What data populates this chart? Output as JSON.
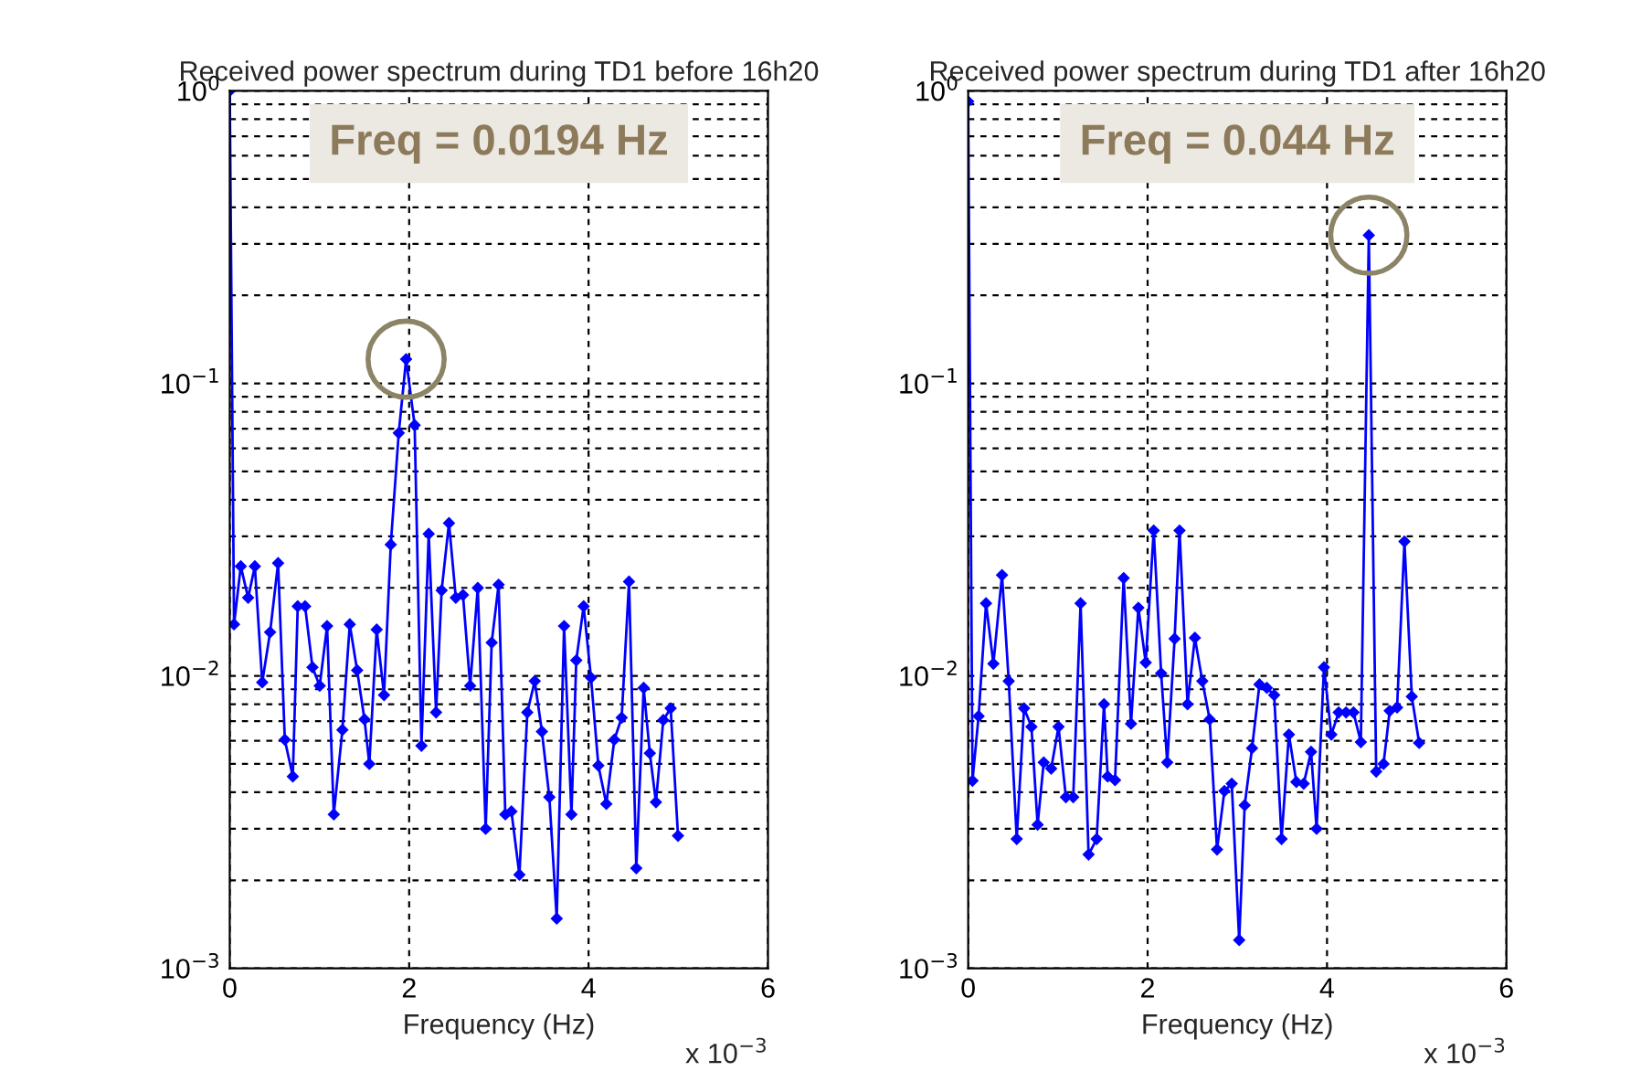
{
  "chart_data": [
    {
      "type": "line",
      "title": "Received power spectrum during TD1 before 16h20",
      "xlabel": "Frequency (Hz)",
      "marker": "diamond",
      "line_style": "solid",
      "grid": true,
      "log": "y",
      "xlim": [
        0,
        6
      ],
      "xticks": [
        0,
        2,
        4,
        6
      ],
      "ylim": [
        0.001,
        1
      ],
      "yticks": [
        {
          "value": 0.001,
          "label": "10$^{−3}$"
        },
        {
          "value": 0.002,
          "label": null
        },
        {
          "value": 0.003,
          "label": null
        },
        {
          "value": 0.004,
          "label": null
        },
        {
          "value": 0.005,
          "label": null
        },
        {
          "value": 0.006,
          "label": null
        },
        {
          "value": 0.007,
          "label": null
        },
        {
          "value": 0.008,
          "label": null
        },
        {
          "value": 0.009,
          "label": null
        },
        {
          "value": 0.01,
          "label": "10$^{−2}$"
        },
        {
          "value": 0.02,
          "label": null
        },
        {
          "value": 0.03,
          "label": null
        },
        {
          "value": 0.04,
          "label": null
        },
        {
          "value": 0.05,
          "label": null
        },
        {
          "value": 0.06,
          "label": null
        },
        {
          "value": 0.07,
          "label": null
        },
        {
          "value": 0.08,
          "label": null
        },
        {
          "value": 0.09,
          "label": null
        },
        {
          "value": 0.1,
          "label": "10$^{−1}$"
        },
        {
          "value": 0.2,
          "label": null
        },
        {
          "value": 0.3,
          "label": null
        },
        {
          "value": 0.4,
          "label": null
        },
        {
          "value": 0.5,
          "label": null
        },
        {
          "value": 0.6,
          "label": null
        },
        {
          "value": 0.7,
          "label": null
        },
        {
          "value": 0.8,
          "label": null
        },
        {
          "value": 0.9,
          "label": null
        },
        {
          "value": 1,
          "label": "10$^{0}$"
        }
      ],
      "annotations": [
        "Freq = 0.0194 Hz",
        "x 10$^{−3}$"
      ],
      "series": [
        {
          "color": "#0000ff",
          "x": [
            0,
            0.048,
            0.123,
            0.205,
            0.28,
            0.362,
            0.45,
            0.539,
            0.614,
            0.703,
            0.758,
            0.84,
            0.922,
            1.003,
            1.085,
            1.16,
            1.256,
            1.338,
            1.42,
            1.502,
            1.556,
            1.638,
            1.72,
            1.795,
            1.884,
            1.966,
            2.061,
            2.137,
            2.218,
            2.3,
            2.362,
            2.444,
            2.52,
            2.6,
            2.68,
            2.765,
            2.853,
            2.92,
            2.997,
            3.072,
            3.14,
            3.229,
            3.317,
            3.4,
            3.48,
            3.563,
            3.645,
            3.727,
            3.809,
            3.863,
            3.945,
            4.027,
            4.109,
            4.198,
            4.287,
            4.369,
            4.451,
            4.532,
            4.614,
            4.683,
            4.751,
            4.833,
            4.915,
            4.997
          ],
          "values": [
            1.0,
            0.015,
            0.0237,
            0.0185,
            0.0237,
            0.0095,
            0.0141,
            0.0243,
            0.00605,
            0.00453,
            0.0173,
            0.0173,
            0.0107,
            0.00925,
            0.0148,
            0.00336,
            0.00654,
            0.015,
            0.01045,
            0.0071,
            0.005,
            0.0144,
            0.0086,
            0.0281,
            0.0677,
            0.121,
            0.072,
            0.00577,
            0.0306,
            0.0075,
            0.0196,
            0.0333,
            0.0185,
            0.0189,
            0.00925,
            0.02,
            0.003,
            0.013,
            0.0205,
            0.00336,
            0.00344,
            0.00209,
            0.0075,
            0.0096,
            0.00645,
            0.00385,
            0.00148,
            0.0148,
            0.00336,
            0.0113,
            0.0173,
            0.00986,
            0.00494,
            0.00365,
            0.00605,
            0.0072,
            0.021,
            0.0022,
            0.0091,
            0.00544,
            0.0037,
            0.00706,
            0.00775,
            0.00284
          ]
        }
      ]
    },
    {
      "type": "line",
      "title": "Received power spectrum during TD1 after 16h20",
      "xlabel": "Frequency (Hz)",
      "marker": "diamond",
      "line_style": "solid",
      "grid": true,
      "log": "y",
      "xlim": [
        0,
        6
      ],
      "xticks": [
        0,
        2,
        4,
        6
      ],
      "ylim": [
        0.001,
        1
      ],
      "yticks": [
        {
          "value": 0.001,
          "label": "10$^{−3}$"
        },
        {
          "value": 0.002,
          "label": null
        },
        {
          "value": 0.003,
          "label": null
        },
        {
          "value": 0.004,
          "label": null
        },
        {
          "value": 0.005,
          "label": null
        },
        {
          "value": 0.006,
          "label": null
        },
        {
          "value": 0.007,
          "label": null
        },
        {
          "value": 0.008,
          "label": null
        },
        {
          "value": 0.009,
          "label": null
        },
        {
          "value": 0.01,
          "label": "10$^{−2}$"
        },
        {
          "value": 0.02,
          "label": null
        },
        {
          "value": 0.03,
          "label": null
        },
        {
          "value": 0.04,
          "label": null
        },
        {
          "value": 0.05,
          "label": null
        },
        {
          "value": 0.06,
          "label": null
        },
        {
          "value": 0.07,
          "label": null
        },
        {
          "value": 0.08,
          "label": null
        },
        {
          "value": 0.09,
          "label": null
        },
        {
          "value": 0.1,
          "label": "10$^{−1}$"
        },
        {
          "value": 0.2,
          "label": null
        },
        {
          "value": 0.3,
          "label": null
        },
        {
          "value": 0.4,
          "label": null
        },
        {
          "value": 0.5,
          "label": null
        },
        {
          "value": 0.6,
          "label": null
        },
        {
          "value": 0.7,
          "label": null
        },
        {
          "value": 0.8,
          "label": null
        },
        {
          "value": 0.9,
          "label": null
        },
        {
          "value": 1,
          "label": "10$^{0}$"
        }
      ],
      "annotations": [
        "Freq = 0.044 Hz",
        "x 10$^{−3}$"
      ],
      "series": [
        {
          "color": "#0000ff",
          "x": [
            0,
            0.048,
            0.116,
            0.199,
            0.281,
            0.377,
            0.452,
            0.541,
            0.623,
            0.705,
            0.774,
            0.842,
            0.925,
            1.007,
            1.089,
            1.171,
            1.253,
            1.342,
            1.432,
            1.514,
            1.555,
            1.637,
            1.733,
            1.815,
            1.897,
            1.979,
            2.068,
            2.151,
            2.219,
            2.301,
            2.356,
            2.445,
            2.527,
            2.61,
            2.692,
            2.774,
            2.856,
            2.938,
            3.021,
            3.082,
            3.164,
            3.247,
            3.329,
            3.411,
            3.493,
            3.575,
            3.658,
            3.74,
            3.822,
            3.884,
            3.966,
            4.048,
            4.13,
            4.212,
            4.295,
            4.377,
            4.466,
            4.548,
            4.63,
            4.699,
            4.781,
            4.863,
            4.945,
            5.027
          ],
          "values": [
            0.92,
            0.00438,
            0.00728,
            0.0177,
            0.011,
            0.0221,
            0.0096,
            0.00277,
            0.00775,
            0.0067,
            0.0031,
            0.00506,
            0.00482,
            0.0067,
            0.00385,
            0.00385,
            0.0177,
            0.00245,
            0.00277,
            0.008,
            0.00453,
            0.0044,
            0.0216,
            0.00686,
            0.0171,
            0.0111,
            0.0314,
            0.0102,
            0.00506,
            0.0134,
            0.0314,
            0.008,
            0.0135,
            0.0096,
            0.0071,
            0.00255,
            0.00404,
            0.00428,
            0.00125,
            0.00361,
            0.00566,
            0.00935,
            0.0091,
            0.0086,
            0.00277,
            0.0063,
            0.00434,
            0.00428,
            0.0055,
            0.003,
            0.0107,
            0.0063,
            0.0075,
            0.0075,
            0.0075,
            0.00594,
            0.321,
            0.00471,
            0.005,
            0.0076,
            0.0078,
            0.0288,
            0.0085,
            0.0059
          ]
        }
      ]
    }
  ]
}
